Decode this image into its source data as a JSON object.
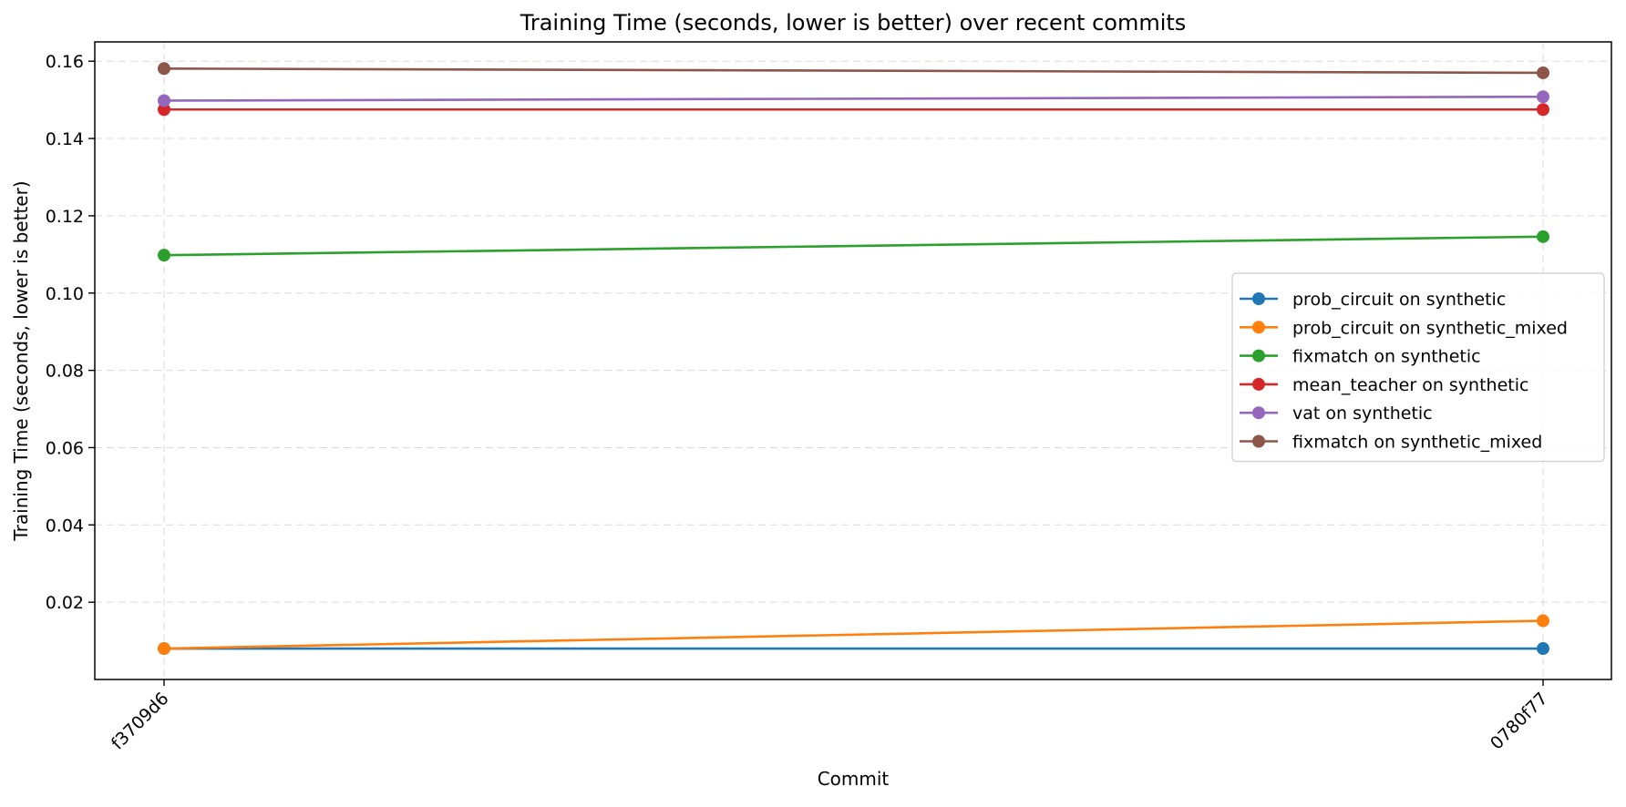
{
  "chart_data": {
    "type": "line",
    "title": "Training Time (seconds, lower is better) over recent commits",
    "xlabel": "Commit",
    "ylabel": "Training Time (seconds, lower is better)",
    "categories": [
      "f3709d6",
      "0780f77"
    ],
    "ylim": [
      0.0,
      0.165
    ],
    "yticks": [
      0.02,
      0.04,
      0.06,
      0.08,
      0.1,
      0.12,
      0.14,
      0.16
    ],
    "ytick_labels": [
      "0.02",
      "0.04",
      "0.06",
      "0.08",
      "0.10",
      "0.12",
      "0.14",
      "0.16"
    ],
    "grid": true,
    "legend_position": "center-right",
    "series": [
      {
        "name": "prob_circuit on synthetic",
        "color": "#1f77b4",
        "values": [
          0.008,
          0.008
        ]
      },
      {
        "name": "prob_circuit on synthetic_mixed",
        "color": "#ff7f0e",
        "values": [
          0.008,
          0.0152
        ]
      },
      {
        "name": "fixmatch on synthetic",
        "color": "#2ca02c",
        "values": [
          0.1098,
          0.1146
        ]
      },
      {
        "name": "mean_teacher on synthetic",
        "color": "#d62728",
        "values": [
          0.1475,
          0.1475
        ]
      },
      {
        "name": "vat on synthetic",
        "color": "#9467bd",
        "values": [
          0.1498,
          0.1508
        ]
      },
      {
        "name": "fixmatch on synthetic_mixed",
        "color": "#8c564b",
        "values": [
          0.1581,
          0.157
        ]
      }
    ]
  }
}
